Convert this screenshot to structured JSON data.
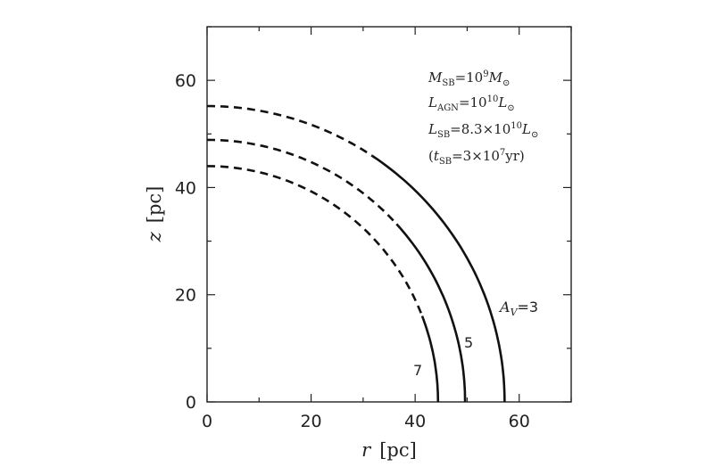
{
  "chart_data": {
    "type": "line",
    "xlabel_var": "r",
    "xlabel_unit": "[pc]",
    "ylabel_var": "z",
    "ylabel_unit": "[pc]",
    "xlim": [
      0,
      70
    ],
    "ylim": [
      0,
      70
    ],
    "x_ticks": [
      "0",
      "20",
      "40",
      "60"
    ],
    "y_ticks": [
      "0",
      "20",
      "40",
      "60"
    ],
    "grid": false,
    "annotations": {
      "m_sb": {
        "sym": "M",
        "sub": "SB",
        "eq": "=10",
        "sup": "9",
        "sym2": "M",
        "sub2": "⊙"
      },
      "l_agn": {
        "sym": "L",
        "sub": "AGN",
        "eq": "=10",
        "sup": "10",
        "sym2": "L",
        "sub2": "⊙"
      },
      "l_sb": {
        "sym": "L",
        "sub": "SB",
        "eq": "=8.3×10",
        "sup": "10",
        "sym2": "L",
        "sub2": "⊙"
      },
      "t_sb": {
        "open": "(",
        "sym": "t",
        "sub": "SB",
        "eq": "=3×10",
        "sup": "7",
        "tail": "yr)"
      }
    },
    "series": [
      {
        "label": "A_V=3",
        "label_parts": {
          "sym": "A",
          "sub": "V",
          "eq": "=3"
        },
        "radius_r": 57.2,
        "radius_z": 55.2,
        "dashed_until_r": 32.5
      },
      {
        "label": "5",
        "radius_r": 49.6,
        "radius_z": 48.9,
        "dashed_until_r": 36.5
      },
      {
        "label": "7",
        "radius_r": 44.4,
        "radius_z": 44.0,
        "dashed_until_r": 41.5
      }
    ]
  }
}
